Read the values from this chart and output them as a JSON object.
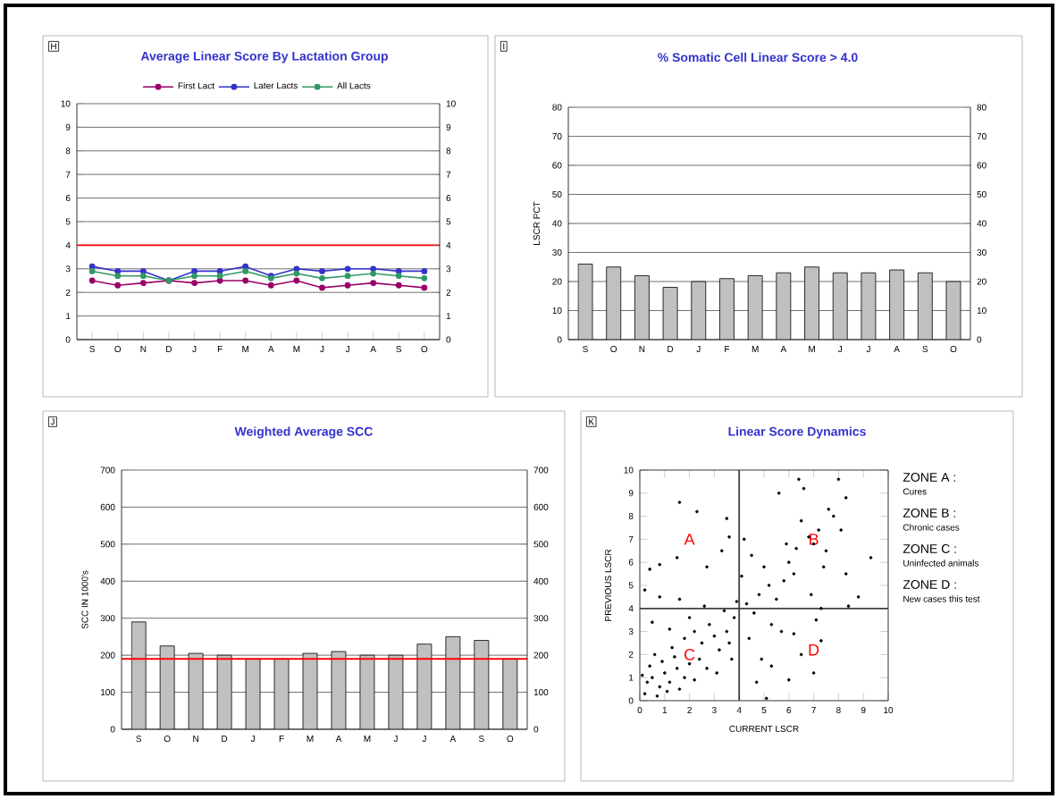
{
  "chart_data": [
    {
      "type": "line",
      "title": "Average Linear Score By Lactation Group",
      "categories": [
        "S",
        "O",
        "N",
        "D",
        "J",
        "F",
        "M",
        "A",
        "M",
        "J",
        "J",
        "A",
        "S",
        "O"
      ],
      "series": [
        {
          "name": "First Lact",
          "color": "#990066",
          "values": [
            2.5,
            2.3,
            2.4,
            2.5,
            2.4,
            2.5,
            2.5,
            2.3,
            2.5,
            2.2,
            2.3,
            2.4,
            2.3,
            2.2
          ]
        },
        {
          "name": "Later Lacts",
          "color": "#3333cc",
          "values": [
            3.1,
            2.9,
            2.9,
            2.5,
            2.9,
            2.9,
            3.1,
            2.7,
            3.0,
            2.9,
            3.0,
            3.0,
            2.9,
            2.9
          ]
        },
        {
          "name": "All Lacts",
          "color": "#339966",
          "values": [
            2.9,
            2.7,
            2.7,
            2.5,
            2.7,
            2.7,
            2.9,
            2.6,
            2.8,
            2.6,
            2.7,
            2.8,
            2.7,
            2.6
          ]
        }
      ],
      "ylim": [
        0,
        10
      ],
      "yticks": [
        0,
        1,
        2,
        3,
        4,
        5,
        6,
        7,
        8,
        9,
        10
      ],
      "y2lim": [
        0,
        10
      ],
      "y2ticks": [
        0,
        1,
        2,
        3,
        4,
        5,
        6,
        7,
        8,
        9,
        10
      ],
      "ref_lines": [
        {
          "axis": "y",
          "value": 4,
          "color": "#ff0000"
        }
      ],
      "grid": "y",
      "legend": "top",
      "marker": "circle",
      "annotations": [
        "H"
      ]
    },
    {
      "type": "bar",
      "title": "% Somatic Cell Linear Score  > 4.0",
      "ylabel": "LSCR PCT",
      "categories": [
        "S",
        "O",
        "N",
        "D",
        "J",
        "F",
        "M",
        "A",
        "M",
        "J",
        "J",
        "A",
        "S",
        "O"
      ],
      "values": [
        26,
        25,
        22,
        18,
        20,
        21,
        22,
        23,
        25,
        23,
        23,
        24,
        23,
        20
      ],
      "color": "#c0c0c0",
      "ylim": [
        0,
        80
      ],
      "yticks": [
        0,
        10,
        20,
        30,
        40,
        50,
        60,
        70,
        80
      ],
      "y2lim": [
        0,
        80
      ],
      "y2ticks": [
        0,
        10,
        20,
        30,
        40,
        50,
        60,
        70,
        80
      ],
      "grid": "y",
      "annotations": [
        "I"
      ]
    },
    {
      "type": "bar",
      "title": "Weighted Average SCC",
      "ylabel": "SCC IN 1000's",
      "categories": [
        "S",
        "O",
        "N",
        "D",
        "J",
        "F",
        "M",
        "A",
        "M",
        "J",
        "J",
        "A",
        "S",
        "O"
      ],
      "values": [
        290,
        225,
        205,
        200,
        190,
        190,
        205,
        210,
        200,
        200,
        230,
        250,
        240,
        190
      ],
      "color": "#c0c0c0",
      "ylim": [
        0,
        700
      ],
      "yticks": [
        0,
        100,
        200,
        300,
        400,
        500,
        600,
        700
      ],
      "y2lim": [
        0,
        700
      ],
      "y2ticks": [
        0,
        100,
        200,
        300,
        400,
        500,
        600,
        700
      ],
      "ref_lines": [
        {
          "axis": "y",
          "value": 190,
          "color": "#ff0000"
        }
      ],
      "grid": "y",
      "annotations": [
        "J"
      ]
    },
    {
      "type": "scatter",
      "title": "Linear Score Dynamics",
      "xlabel": "CURRENT LSCR",
      "ylabel": "PREVIOUS LSCR",
      "color": "#000000",
      "marker": "circle",
      "x": [
        0.2,
        0.5,
        0.8,
        1.0,
        1.2,
        0.4,
        1.5,
        0.7,
        1.1,
        1.8,
        0.3,
        1.4,
        2.0,
        0.9,
        1.6,
        0.1,
        2.2,
        1.3,
        0.6,
        2.4,
        2.5,
        3.0,
        2.8,
        3.5,
        3.2,
        2.2,
        3.8,
        3.4,
        2.7,
        3.6,
        1.8,
        3.9,
        2.0,
        1.2,
        0.5,
        3.1,
        2.6,
        3.7,
        1.6,
        0.8,
        4.3,
        4.6,
        4.8,
        5.2,
        5.5,
        4.4,
        4.9,
        5.3,
        4.1,
        5.0,
        5.8,
        4.7,
        5.1,
        4.5,
        5.7,
        4.2,
        5.6,
        6.0,
        6.3,
        6.8,
        7.2,
        7.0,
        6.5,
        7.5,
        7.8,
        8.1,
        6.2,
        7.4,
        8.3,
        8.0,
        6.4,
        6.6,
        7.6,
        9.3,
        8.8,
        8.3,
        6.9,
        7.3,
        8.4,
        5.9,
        1.6,
        2.3,
        3.5,
        3.6,
        1.5,
        0.4,
        0.8,
        2.7,
        3.3,
        0.2,
        6.5,
        7.0,
        7.3,
        6.0,
        5.3,
        7.1,
        6.2
      ],
      "values": [
        0.3,
        1.0,
        0.6,
        1.2,
        0.8,
        1.5,
        1.4,
        0.2,
        0.4,
        1.0,
        0.8,
        1.9,
        1.6,
        1.7,
        0.5,
        1.1,
        0.9,
        2.3,
        2.0,
        1.8,
        2.5,
        2.8,
        3.3,
        3.0,
        2.2,
        3.0,
        3.6,
        3.9,
        1.4,
        2.5,
        2.7,
        4.3,
        3.6,
        3.1,
        3.4,
        1.2,
        4.1,
        1.8,
        4.4,
        4.5,
        4.2,
        3.8,
        4.6,
        5.0,
        4.4,
        2.7,
        1.8,
        3.3,
        5.4,
        5.8,
        5.2,
        0.8,
        0.1,
        6.3,
        3.0,
        7.0,
        9.0,
        6.0,
        6.6,
        7.1,
        7.4,
        6.8,
        7.8,
        6.5,
        8.0,
        7.4,
        5.5,
        5.8,
        8.8,
        9.6,
        9.6,
        9.2,
        8.3,
        6.2,
        4.5,
        5.5,
        4.6,
        4.0,
        4.1,
        6.8,
        8.6,
        8.2,
        7.9,
        7.1,
        6.2,
        5.7,
        5.9,
        5.8,
        6.5,
        4.8,
        2.0,
        1.2,
        2.6,
        0.9,
        1.5,
        3.5,
        2.9
      ],
      "xlim": [
        0,
        10
      ],
      "xticks": [
        0,
        1,
        2,
        3,
        4,
        5,
        6,
        7,
        8,
        9,
        10
      ],
      "ylim": [
        0,
        10
      ],
      "yticks": [
        0,
        1,
        2,
        3,
        4,
        5,
        6,
        7,
        8,
        9,
        10
      ],
      "ref_lines": [
        {
          "axis": "x",
          "value": 4,
          "color": "#404040"
        },
        {
          "axis": "y",
          "value": 4,
          "color": "#404040"
        }
      ],
      "annotations": [
        "K",
        "A",
        "B",
        "C",
        "D",
        "ZONE A :",
        "Cures",
        "ZONE B :",
        "Chronic cases",
        "ZONE C :",
        "Uninfected animals",
        "ZONE D :",
        "New cases this test"
      ]
    }
  ]
}
